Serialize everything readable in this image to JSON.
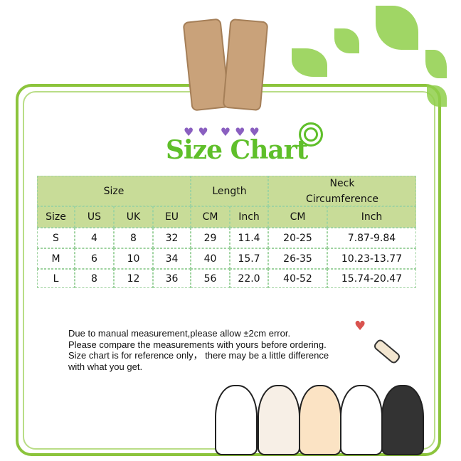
{
  "title": "Size Chart",
  "table": {
    "group_headers": [
      "Size",
      "Length",
      "Neck Circumference"
    ],
    "columns": [
      "Size",
      "US",
      "UK",
      "EU",
      "CM",
      "Inch",
      "CM",
      "Inch"
    ],
    "rows": [
      [
        "S",
        "4",
        "8",
        "32",
        "29",
        "11.4",
        "20-25",
        "7.87-9.84"
      ],
      [
        "M",
        "6",
        "10",
        "34",
        "40",
        "15.7",
        "26-35",
        "10.23-13.77"
      ],
      [
        "L",
        "8",
        "12",
        "36",
        "56",
        "22.0",
        "40-52",
        "15.74-20.47"
      ]
    ]
  },
  "notes": [
    "Due to manual measurement,please allow ±2cm error.",
    "Please compare the measurements with yours before ordering.",
    "Size chart is for reference only， there may be a little difference",
    "with what you get."
  ],
  "colors": {
    "frame": "#8cc43c",
    "header": "#c8dc98",
    "title": "#5fbf2a"
  }
}
